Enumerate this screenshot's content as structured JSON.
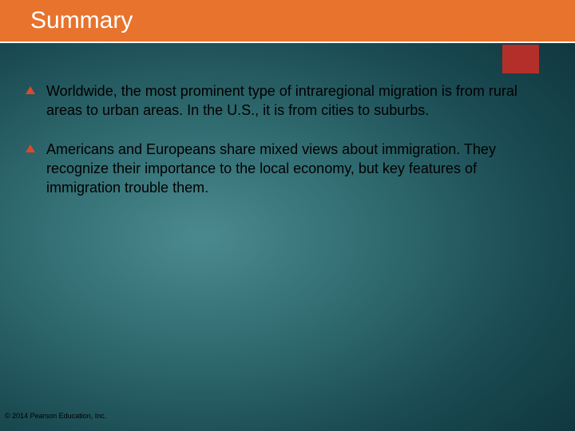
{
  "slide": {
    "title": "Summary",
    "title_bar_color": "#e8732d",
    "title_color": "#ffffff",
    "title_fontsize": 30,
    "accent_box_color": "#b52f2a",
    "background_gradient": {
      "inner": "#4a8a8f",
      "mid": "#2f6a6f",
      "outer": "#1a4a52",
      "edge": "#0d3138"
    },
    "bullets": [
      {
        "text": "Worldwide, the most prominent type of intraregional migration is from rural areas to urban areas. In the U.S., it is from cities to suburbs."
      },
      {
        "text": "Americans and Europeans share mixed views about immigration. They recognize their importance to the local economy, but key features of immigration trouble them."
      }
    ],
    "bullet_marker_color": "#d84a2e",
    "bullet_text_color": "#000000",
    "bullet_fontsize": 18,
    "copyright": "© 2014 Pearson Education, Inc."
  }
}
